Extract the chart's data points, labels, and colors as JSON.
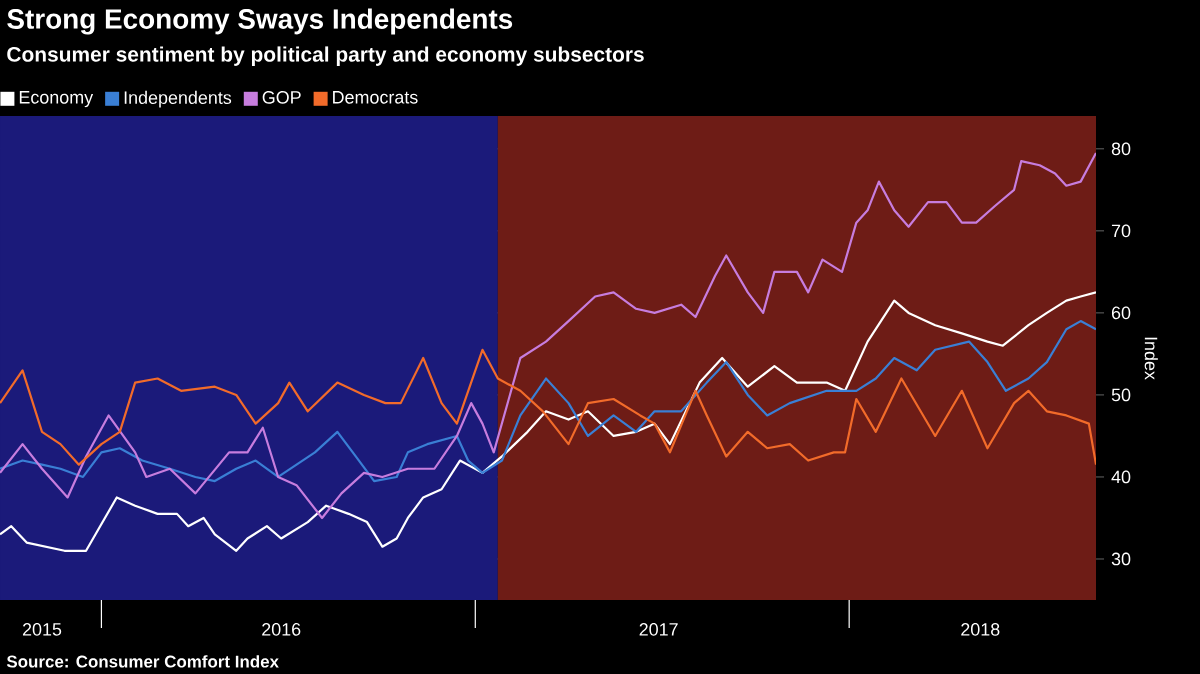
{
  "chart_data": {
    "type": "line",
    "title": "Strong Economy Sways Independents",
    "subtitle": "Consumer sentiment by political party and economy subsectors",
    "ylabel": "Index",
    "annotations": [
      "Source: Consumer Comfort Index"
    ],
    "xlim": [
      "2015-09-24",
      "2018-08-30"
    ],
    "ylim": [
      25,
      84
    ],
    "xticks": [
      {
        "value": "2015-11-04",
        "label": "2015"
      },
      {
        "value": "2016-01-01",
        "label": null
      },
      {
        "value": "2016-06-25",
        "label": "2016"
      },
      {
        "value": "2017-01-01",
        "label": null
      },
      {
        "value": "2017-06-29",
        "label": "2017"
      },
      {
        "value": "2018-01-01",
        "label": null
      },
      {
        "value": "2018-05-09",
        "label": "2018"
      }
    ],
    "yticks": [
      30,
      40,
      50,
      60,
      70,
      80
    ],
    "grid": "y",
    "legend": "top left",
    "marker": "none",
    "line_style": "solid",
    "bands": [
      {
        "axis": "x",
        "from": "2015-09-24",
        "to": "2017-01-23",
        "color": "#1b1a7a"
      },
      {
        "axis": "x",
        "from": "2017-01-23",
        "to": "2018-08-30",
        "color": "#6e1c16"
      }
    ],
    "series": [
      {
        "name": "Economy",
        "color": "#ffffff",
        "x": [
          "2015-09-24",
          "2015-10-05",
          "2015-10-20",
          "2015-11-26",
          "2015-12-17",
          "2016-01-16",
          "2016-02-03",
          "2016-02-25",
          "2016-03-15",
          "2016-03-26",
          "2016-04-10",
          "2016-04-21",
          "2016-05-12",
          "2016-05-23",
          "2016-06-11",
          "2016-06-25",
          "2016-07-21",
          "2016-08-08",
          "2016-08-30",
          "2016-09-17",
          "2016-10-02",
          "2016-10-16",
          "2016-10-27",
          "2016-11-11",
          "2016-11-29",
          "2016-12-17",
          "2017-01-08",
          "2017-01-27",
          "2017-02-21",
          "2017-03-11",
          "2017-04-02",
          "2017-04-21",
          "2017-05-16",
          "2017-06-07",
          "2017-06-25",
          "2017-07-10",
          "2017-08-08",
          "2017-08-30",
          "2017-09-24",
          "2017-10-20",
          "2017-11-11",
          "2017-12-10",
          "2017-12-28",
          "2018-01-19",
          "2018-02-14",
          "2018-02-28",
          "2018-03-26",
          "2018-04-21",
          "2018-05-16",
          "2018-05-31",
          "2018-06-25",
          "2018-07-13",
          "2018-08-01",
          "2018-08-15",
          "2018-08-30"
        ],
        "values": [
          33,
          34,
          32,
          31,
          31,
          37.5,
          36.5,
          35.5,
          35.5,
          34,
          35,
          33,
          31,
          32.5,
          34,
          32.5,
          34.5,
          36.5,
          35.5,
          34.5,
          31.5,
          32.5,
          35,
          37.5,
          38.5,
          42,
          40.5,
          42.5,
          45.5,
          48,
          47,
          48,
          45,
          45.5,
          46.5,
          44,
          51.5,
          54.5,
          51,
          53.5,
          51.5,
          51.5,
          50.5,
          56.5,
          61.5,
          60,
          58.5,
          57.5,
          56.5,
          56,
          58.5,
          60,
          61.5,
          62,
          62.5
        ]
      },
      {
        "name": "Independents",
        "color": "#3a7fd5",
        "x": [
          "2015-09-24",
          "2015-10-16",
          "2015-11-04",
          "2015-11-22",
          "2015-12-14",
          "2016-01-01",
          "2016-01-19",
          "2016-02-10",
          "2016-03-08",
          "2016-04-02",
          "2016-04-21",
          "2016-05-12",
          "2016-05-31",
          "2016-06-22",
          "2016-07-10",
          "2016-07-28",
          "2016-08-19",
          "2016-09-06",
          "2016-09-24",
          "2016-10-16",
          "2016-10-27",
          "2016-11-15",
          "2016-12-14",
          "2016-12-25",
          "2017-01-08",
          "2017-01-27",
          "2017-02-14",
          "2017-03-11",
          "2017-04-02",
          "2017-04-21",
          "2017-05-16",
          "2017-06-07",
          "2017-06-25",
          "2017-07-21",
          "2017-08-15",
          "2017-09-03",
          "2017-09-24",
          "2017-10-13",
          "2017-11-04",
          "2017-12-10",
          "2018-01-08",
          "2018-01-27",
          "2018-02-14",
          "2018-03-08",
          "2018-03-26",
          "2018-04-28",
          "2018-05-16",
          "2018-06-03",
          "2018-06-25",
          "2018-07-13",
          "2018-08-01",
          "2018-08-15",
          "2018-08-30"
        ],
        "values": [
          41,
          42,
          41.5,
          41,
          40,
          43,
          43.5,
          42,
          41,
          40,
          39.5,
          41,
          42,
          40,
          41.5,
          43,
          45.5,
          42.5,
          39.5,
          40,
          43,
          44,
          45,
          42,
          40.5,
          42,
          47.5,
          52,
          49,
          45,
          47.5,
          45.5,
          48,
          48,
          51.5,
          54,
          50,
          47.5,
          49,
          50.5,
          50.5,
          52,
          54.5,
          53,
          55.5,
          56.5,
          54,
          50.5,
          52,
          54,
          58,
          59,
          58
        ]
      },
      {
        "name": "GOP",
        "color": "#c77dde",
        "x": [
          "2015-09-24",
          "2015-10-16",
          "2015-11-04",
          "2015-11-29",
          "2015-12-17",
          "2016-01-08",
          "2016-02-03",
          "2016-02-14",
          "2016-03-08",
          "2016-04-02",
          "2016-05-05",
          "2016-05-23",
          "2016-06-07",
          "2016-06-22",
          "2016-07-10",
          "2016-08-04",
          "2016-08-23",
          "2016-09-14",
          "2016-10-02",
          "2016-10-27",
          "2016-11-22",
          "2016-12-14",
          "2016-12-28",
          "2017-01-08",
          "2017-01-19",
          "2017-02-14",
          "2017-03-11",
          "2017-04-02",
          "2017-04-28",
          "2017-05-16",
          "2017-06-07",
          "2017-06-25",
          "2017-07-21",
          "2017-08-04",
          "2017-08-23",
          "2017-09-03",
          "2017-09-24",
          "2017-10-09",
          "2017-10-20",
          "2017-11-11",
          "2017-11-22",
          "2017-12-06",
          "2017-12-25",
          "2018-01-08",
          "2018-01-19",
          "2018-01-30",
          "2018-02-14",
          "2018-02-28",
          "2018-03-19",
          "2018-04-06",
          "2018-04-21",
          "2018-05-05",
          "2018-05-23",
          "2018-06-11",
          "2018-06-18",
          "2018-07-06",
          "2018-07-21",
          "2018-08-01",
          "2018-08-15",
          "2018-08-30"
        ],
        "values": [
          40.5,
          44,
          41,
          37.5,
          42.5,
          47.5,
          43,
          40,
          41,
          38,
          43,
          43,
          46,
          40,
          39,
          35,
          38,
          40.5,
          40,
          41,
          41,
          45,
          49,
          46.5,
          43,
          54.5,
          56.5,
          59,
          62,
          62.5,
          60.5,
          60,
          61,
          59.5,
          64.5,
          67,
          62.5,
          60,
          65,
          65,
          62.5,
          66.5,
          65,
          71,
          72.5,
          76,
          72.5,
          70.5,
          73.5,
          73.5,
          71,
          71,
          73,
          75,
          78.5,
          78,
          77,
          75.5,
          76,
          79.5
        ]
      },
      {
        "name": "Democrats",
        "color": "#f26b2a",
        "x": [
          "2015-09-24",
          "2015-10-16",
          "2015-11-04",
          "2015-11-22",
          "2015-12-10",
          "2016-01-01",
          "2016-01-19",
          "2016-02-03",
          "2016-02-25",
          "2016-03-19",
          "2016-04-21",
          "2016-05-12",
          "2016-05-31",
          "2016-06-22",
          "2016-07-03",
          "2016-07-21",
          "2016-08-19",
          "2016-09-14",
          "2016-10-05",
          "2016-10-20",
          "2016-11-11",
          "2016-11-29",
          "2016-12-14",
          "2017-01-08",
          "2017-01-23",
          "2017-02-14",
          "2017-03-08",
          "2017-04-02",
          "2017-04-21",
          "2017-05-16",
          "2017-06-11",
          "2017-06-25",
          "2017-07-10",
          "2017-08-04",
          "2017-08-15",
          "2017-09-03",
          "2017-09-24",
          "2017-10-13",
          "2017-11-04",
          "2017-11-22",
          "2017-12-17",
          "2017-12-28",
          "2018-01-08",
          "2018-01-27",
          "2018-02-21",
          "2018-03-26",
          "2018-04-21",
          "2018-05-16",
          "2018-06-11",
          "2018-06-25",
          "2018-07-13",
          "2018-08-01",
          "2018-08-23",
          "2018-08-30"
        ],
        "values": [
          49,
          53,
          45.5,
          44,
          41.5,
          44,
          45.5,
          51.5,
          52,
          50.5,
          51,
          50,
          46.5,
          49,
          51.5,
          48,
          51.5,
          50,
          49,
          49,
          54.5,
          49,
          46.5,
          55.5,
          52,
          50.5,
          48,
          44,
          49,
          49.5,
          47.5,
          46.5,
          43,
          50.5,
          47.5,
          42.5,
          45.5,
          43.5,
          44,
          42,
          43,
          43,
          49.5,
          45.5,
          52,
          45,
          50.5,
          43.5,
          49,
          50.5,
          48,
          47.5,
          46.5,
          41.5
        ]
      }
    ]
  }
}
